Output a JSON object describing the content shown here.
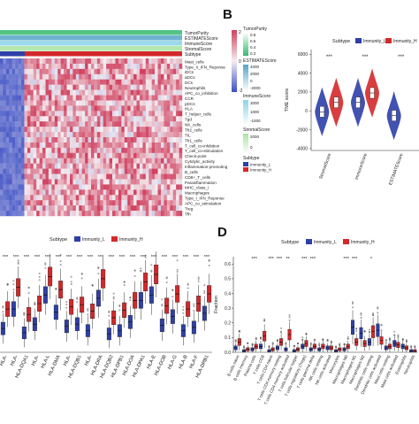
{
  "panels": {
    "a": {
      "letter": ""
    },
    "b": {
      "letter": "B"
    },
    "c": {
      "letter": ""
    },
    "d": {
      "letter": "D"
    }
  },
  "colors": {
    "immunity_l": "#2e3fa8",
    "immunity_h": "#d4282a",
    "heat_low": "#3c4fc4",
    "heat_mid": "#f4eef2",
    "heat_high": "#d0405e",
    "purity_bar": "#36b870",
    "estimate_bar": "#53a6c9",
    "immune_bar": "#8bd3e8",
    "stromal_bar": "#a8e3a0"
  },
  "chart_data": [
    {
      "type": "heatmap",
      "panel": "A",
      "annotation_tracks": [
        "TumorPurity",
        "ESTIMATEScore",
        "ImmuneScore",
        "StromalScore",
        "Subtype"
      ],
      "rows": [
        "Mast_cells",
        "Type_II_IFN_Reponse",
        "iDCs",
        "aDCs",
        "DCs",
        "Neutrophils",
        "APC_co_inhibition",
        "CCR",
        "pDCs",
        "HLA",
        "T_helper_cells",
        "Tgd",
        "NK_cells",
        "Th2_cells",
        "TIL",
        "Th1_cells",
        "T_cell_co-inhibition",
        "T_cell_co-stimulation",
        "Check-point",
        "Cytolytic_activity",
        "Inflammation-promoting",
        "B_cells",
        "CD8+_T_cells",
        "Parainflammation",
        "MHC_class_I",
        "Macrophages",
        "Type_I_IFN_Reponse",
        "APC_co_stimulation",
        "Treg",
        "Tfh"
      ],
      "legend": {
        "scale": [
          "2",
          "0",
          "-2"
        ],
        "tumor_purity": {
          "title": "TumorPurity",
          "ticks": [
            "0.8",
            "0.6",
            "0.4",
            "0.2"
          ]
        },
        "estimate": {
          "title": "ESTIMATEScore",
          "ticks": [
            "4000",
            "2000",
            "0",
            "-2000"
          ]
        },
        "immune": {
          "title": "ImmuneScore",
          "ticks": [
            "3000",
            "1000",
            "-1000"
          ]
        },
        "stromal": {
          "title": "StromalScore",
          "ticks": [
            "2000",
            "0"
          ]
        },
        "subtype": {
          "title": "Subtype",
          "entries": [
            "Immunity_L",
            "Immunity_H"
          ]
        }
      }
    },
    {
      "type": "violin",
      "panel": "B",
      "legend_title": "Subtype",
      "series": [
        {
          "name": "Immunity_L",
          "values": [
            -100,
            900,
            -500
          ]
        },
        {
          "name": "Immunity_H",
          "values": [
            900,
            1900,
            null
          ]
        }
      ],
      "categories": [
        "StromalScore",
        "ImmuneScore",
        "ESTIMATEScore"
      ],
      "significance": [
        "***",
        "***",
        "***"
      ],
      "ylabel": "TME score",
      "yticks": [
        "6000",
        "4000",
        "2000",
        "0",
        "-2000",
        "-4000"
      ],
      "ylim": [
        -4200,
        6500
      ]
    },
    {
      "type": "box",
      "panel": "C",
      "legend_title": "Subtype",
      "series": [
        {
          "name": "Immunity_L",
          "values": [
            2.2,
            4.0,
            1.8,
            2.6,
            5.3,
            3.7,
            2.4,
            2.6,
            2.0,
            5.0,
            1.7,
            2.0,
            2.8,
            4.8,
            5.3,
            2.5,
            3.3,
            2.0,
            2.3,
            3.6
          ]
        },
        {
          "name": "Immunity_H",
          "values": [
            4.0,
            6.0,
            3.5,
            4.5,
            7.0,
            5.8,
            4.2,
            4.4,
            3.8,
            6.8,
            3.2,
            3.9,
            4.8,
            6.5,
            7.2,
            4.3,
            5.4,
            4.0,
            4.5,
            5.4
          ]
        }
      ],
      "categories": [
        "HLA-",
        "HLA-",
        "HLA-DQA1",
        "HLA-",
        "HLA-L",
        "HLA-DMA",
        "HLA-",
        "HLA-DQB1",
        "HLA-",
        "HLA-DRA",
        "HLA-DQB2",
        "HLA-DPB1",
        "HLA-DOA",
        "HLA-DPA1",
        "HLA-E",
        "HLA-DOB",
        "HLA-G",
        "HLA-B",
        "HLA-F",
        "HLA-DRB1"
      ],
      "significance": [
        "***",
        "***",
        "***",
        "***",
        "***",
        "***",
        "***",
        "***",
        "***",
        "***",
        "***",
        "***",
        "***",
        "***",
        "***",
        "***",
        "***",
        "***",
        "***",
        "***"
      ]
    },
    {
      "type": "box",
      "panel": "D",
      "legend_title": "Subtype",
      "series": [
        {
          "name": "Immunity_L",
          "values": [
            0.03,
            0.01,
            0.02,
            0.04,
            0.01,
            0.03,
            0.02,
            0.01,
            0.04,
            0.02,
            0.02,
            0.03,
            0.01,
            0.02,
            0.17,
            0.13,
            0.07,
            0.15,
            0.03,
            0.06,
            0.04,
            0.01
          ]
        },
        {
          "name": "Immunity_H",
          "values": [
            0.07,
            0.02,
            0.04,
            0.11,
            0.02,
            0.07,
            0.12,
            0.02,
            0.06,
            0.04,
            0.04,
            0.03,
            0.02,
            0.04,
            0.07,
            0.06,
            0.14,
            0.08,
            0.04,
            0.05,
            0.03,
            0.01
          ]
        }
      ],
      "categories": [
        "B cells naive",
        "B cells memory",
        "Plasma cells",
        "T cells CD8",
        "T cells CD4 naive",
        "T cells CD4 memory resting",
        "T cells CD4 memory activated",
        "T cells follicular helper",
        "T cells regulatory (Tregs)",
        "T cells gamma delta",
        "NK cells resting",
        "NK cells activated",
        "Monocytes",
        "Macrophages M0",
        "Macrophages M1",
        "Macrophages M2",
        "Dendritic cells resting",
        "Dendritic cells activated",
        "Mast cells resting",
        "Mast cells activated",
        "Eosinophils",
        "Neutrophils"
      ],
      "significance": [
        "",
        "",
        "***",
        "",
        "***",
        "***",
        "**",
        "",
        "***",
        "***",
        "",
        "",
        "",
        "***",
        "***",
        "",
        "*",
        "",
        "",
        "",
        "",
        ""
      ],
      "ylabel": "Fraction",
      "yticks": [
        "0.6",
        "0.5",
        "0.4",
        "0.3",
        "0.2",
        "0.1",
        "0.0"
      ],
      "ylim": [
        0,
        0.65
      ]
    }
  ]
}
